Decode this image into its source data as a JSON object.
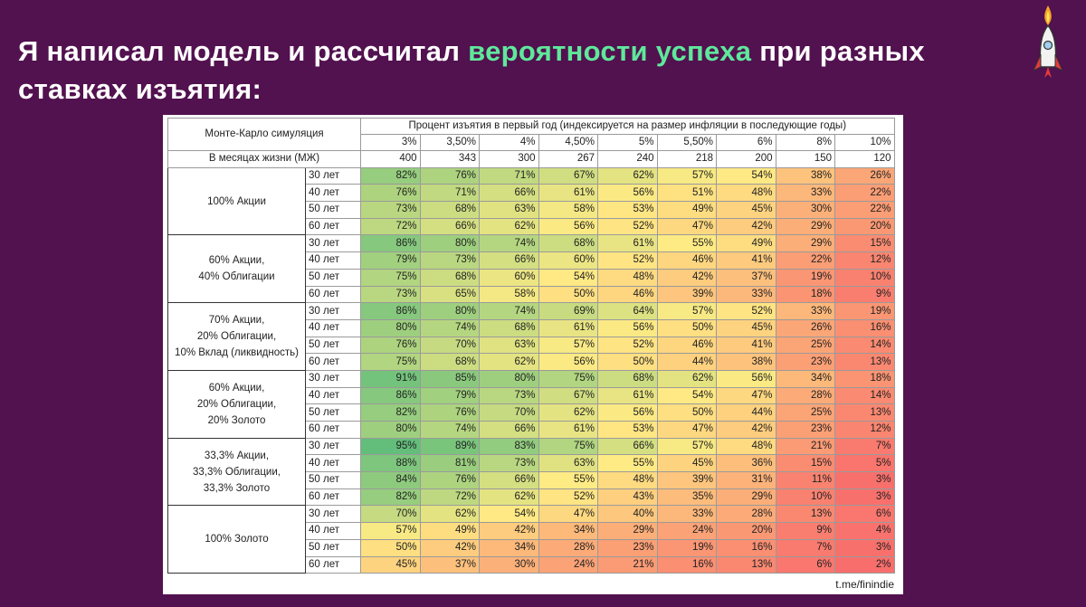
{
  "header": {
    "title_parts": [
      "Я написал модель и рассчитал ",
      "вероятности успеха",
      " при разных ставках изъятия:"
    ]
  },
  "table": {
    "corner": "Монте-Карло симуляция",
    "column_group": "Процент изъятия в первый год (индексируется на размер инфляции в последующие годы)",
    "rates": [
      "3%",
      "3,50%",
      "4%",
      "4,50%",
      "5%",
      "5,50%",
      "6%",
      "8%",
      "10%"
    ],
    "months_label": "В месяцах жизни (МЖ)",
    "months": [
      400,
      343,
      300,
      267,
      240,
      218,
      200,
      150,
      120
    ],
    "groups": [
      {
        "label": [
          "100% Акции"
        ],
        "rows": [
          {
            "label": "30 лет",
            "cells": [
              "82%",
              "76%",
              "71%",
              "67%",
              "62%",
              "57%",
              "54%",
              "38%",
              "26%"
            ]
          },
          {
            "label": "40 лет",
            "cells": [
              "76%",
              "71%",
              "66%",
              "61%",
              "56%",
              "51%",
              "48%",
              "33%",
              "22%"
            ]
          },
          {
            "label": "50 лет",
            "cells": [
              "73%",
              "68%",
              "63%",
              "58%",
              "53%",
              "49%",
              "45%",
              "30%",
              "22%"
            ]
          },
          {
            "label": "60 лет",
            "cells": [
              "72%",
              "66%",
              "62%",
              "56%",
              "52%",
              "47%",
              "42%",
              "29%",
              "20%"
            ]
          }
        ]
      },
      {
        "label": [
          "60% Акции,",
          "40% Облигации"
        ],
        "rows": [
          {
            "label": "30 лет",
            "cells": [
              "86%",
              "80%",
              "74%",
              "68%",
              "61%",
              "55%",
              "49%",
              "29%",
              "15%"
            ]
          },
          {
            "label": "40 лет",
            "cells": [
              "79%",
              "73%",
              "66%",
              "60%",
              "52%",
              "46%",
              "41%",
              "22%",
              "12%"
            ]
          },
          {
            "label": "50 лет",
            "cells": [
              "75%",
              "68%",
              "60%",
              "54%",
              "48%",
              "42%",
              "37%",
              "19%",
              "10%"
            ]
          },
          {
            "label": "60 лет",
            "cells": [
              "73%",
              "65%",
              "58%",
              "50%",
              "46%",
              "39%",
              "33%",
              "18%",
              "9%"
            ]
          }
        ]
      },
      {
        "label": [
          "70% Акции,",
          "20% Облигации,",
          "10% Вклад (ликвидность)"
        ],
        "rows": [
          {
            "label": "30 лет",
            "cells": [
              "86%",
              "80%",
              "74%",
              "69%",
              "64%",
              "57%",
              "52%",
              "33%",
              "19%"
            ]
          },
          {
            "label": "40 лет",
            "cells": [
              "80%",
              "74%",
              "68%",
              "61%",
              "56%",
              "50%",
              "45%",
              "26%",
              "16%"
            ]
          },
          {
            "label": "50 лет",
            "cells": [
              "76%",
              "70%",
              "63%",
              "57%",
              "52%",
              "46%",
              "41%",
              "25%",
              "14%"
            ]
          },
          {
            "label": "60 лет",
            "cells": [
              "75%",
              "68%",
              "62%",
              "56%",
              "50%",
              "44%",
              "38%",
              "23%",
              "13%"
            ]
          }
        ]
      },
      {
        "label": [
          "60% Акции,",
          "20% Облигации,",
          "20% Золото"
        ],
        "rows": [
          {
            "label": "30 лет",
            "cells": [
              "91%",
              "85%",
              "80%",
              "75%",
              "68%",
              "62%",
              "56%",
              "34%",
              "18%"
            ]
          },
          {
            "label": "40 лет",
            "cells": [
              "86%",
              "79%",
              "73%",
              "67%",
              "61%",
              "54%",
              "47%",
              "28%",
              "14%"
            ]
          },
          {
            "label": "50 лет",
            "cells": [
              "82%",
              "76%",
              "70%",
              "62%",
              "56%",
              "50%",
              "44%",
              "25%",
              "13%"
            ]
          },
          {
            "label": "60 лет",
            "cells": [
              "80%",
              "74%",
              "66%",
              "61%",
              "53%",
              "47%",
              "42%",
              "23%",
              "12%"
            ]
          }
        ]
      },
      {
        "label": [
          "33,3% Акции,",
          "33,3% Облигации,",
          "33,3% Золото"
        ],
        "rows": [
          {
            "label": "30 лет",
            "cells": [
              "95%",
              "89%",
              "83%",
              "75%",
              "66%",
              "57%",
              "48%",
              "21%",
              "7%"
            ]
          },
          {
            "label": "40 лет",
            "cells": [
              "88%",
              "81%",
              "73%",
              "63%",
              "55%",
              "45%",
              "36%",
              "15%",
              "5%"
            ]
          },
          {
            "label": "50 лет",
            "cells": [
              "84%",
              "76%",
              "66%",
              "55%",
              "48%",
              "39%",
              "31%",
              "11%",
              "3%"
            ]
          },
          {
            "label": "60 лет",
            "cells": [
              "82%",
              "72%",
              "62%",
              "52%",
              "43%",
              "35%",
              "29%",
              "10%",
              "3%"
            ]
          }
        ]
      },
      {
        "label": [
          "100% Золото"
        ],
        "rows": [
          {
            "label": "30 лет",
            "cells": [
              "70%",
              "62%",
              "54%",
              "47%",
              "40%",
              "33%",
              "28%",
              "13%",
              "6%"
            ]
          },
          {
            "label": "40 лет",
            "cells": [
              "57%",
              "49%",
              "42%",
              "34%",
              "29%",
              "24%",
              "20%",
              "9%",
              "4%"
            ]
          },
          {
            "label": "50 лет",
            "cells": [
              "50%",
              "42%",
              "34%",
              "28%",
              "23%",
              "19%",
              "16%",
              "7%",
              "3%"
            ]
          },
          {
            "label": "60 лет",
            "cells": [
              "45%",
              "37%",
              "30%",
              "24%",
              "21%",
              "16%",
              "13%",
              "6%",
              "2%"
            ]
          }
        ]
      }
    ]
  },
  "footer": "t.me/finindie"
}
